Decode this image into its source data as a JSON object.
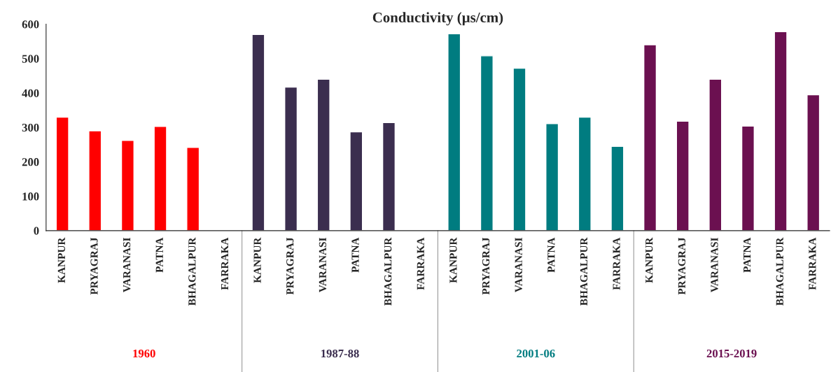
{
  "chart_data": {
    "type": "bar",
    "title": "Conductivity (µs/cm)",
    "categories": [
      "KANPUR",
      "PRYAGRAJ",
      "VARANASI",
      "PATNA",
      "BHAGALPUR",
      "FARRAKA",
      "KANPUR",
      "PRYAGRAJ",
      "VARANASI",
      "PATNA",
      "BHAGALPUR",
      "FARRAKA",
      "KANPUR",
      "PRYAGRAJ",
      "VARANASI",
      "PATNA",
      "BHAGALPUR",
      "FARRAKA",
      "KANPUR",
      "PRYAGRAJ",
      "VARANASI",
      "PATNA",
      "BHAGALPUR",
      "FARRAKA"
    ],
    "series": [
      {
        "name": "1960",
        "color": "#ff0000",
        "values": [
          330,
          290,
          262,
          303,
          242,
          null,
          null,
          null,
          null,
          null,
          null,
          null,
          null,
          null,
          null,
          null,
          null,
          null,
          null,
          null,
          null,
          null,
          null,
          null
        ]
      },
      {
        "name": "1987-88",
        "color": "#3b2e4f",
        "values": [
          null,
          null,
          null,
          null,
          null,
          null,
          570,
          417,
          440,
          287,
          314,
          null,
          null,
          null,
          null,
          null,
          null,
          null,
          null,
          null,
          null,
          null,
          null,
          null
        ]
      },
      {
        "name": "2001-06",
        "color": "#007c80",
        "values": [
          null,
          null,
          null,
          null,
          null,
          null,
          null,
          null,
          null,
          null,
          null,
          null,
          572,
          508,
          472,
          311,
          330,
          245,
          null,
          null,
          null,
          null,
          null,
          null
        ]
      },
      {
        "name": "2015-2019",
        "color": "#6b1050",
        "values": [
          null,
          null,
          null,
          null,
          null,
          null,
          null,
          null,
          null,
          null,
          null,
          null,
          null,
          null,
          null,
          null,
          null,
          null,
          540,
          318,
          440,
          304,
          578,
          395
        ]
      }
    ],
    "ylim": [
      0,
      600
    ],
    "yticks": [
      0,
      100,
      200,
      300,
      400,
      500,
      600
    ],
    "grid": false,
    "legend": false
  }
}
